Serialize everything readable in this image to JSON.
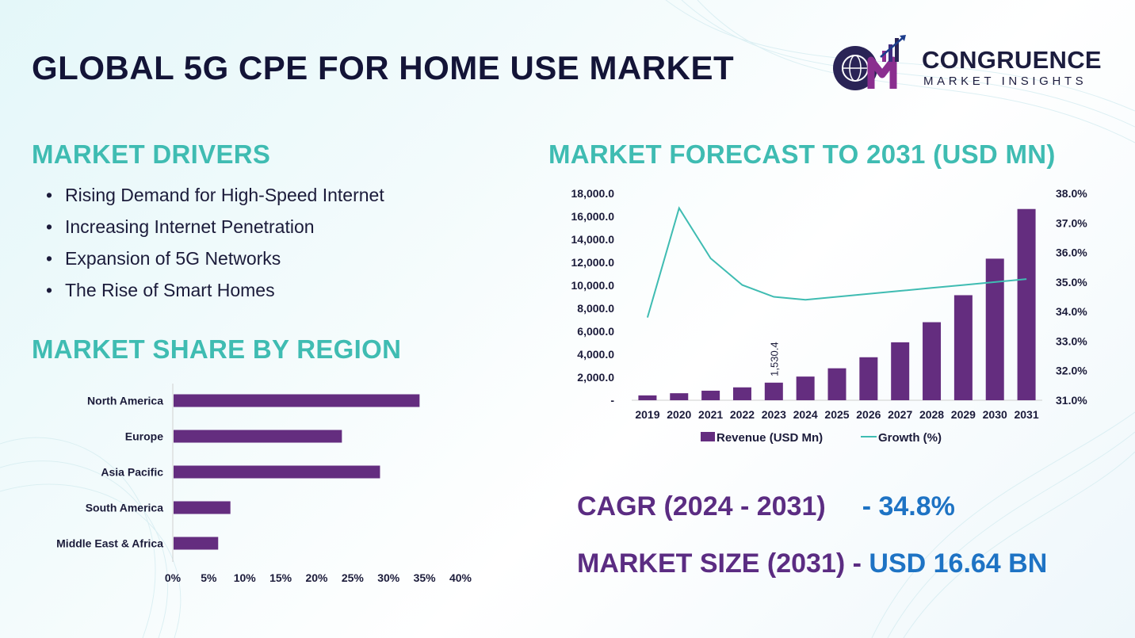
{
  "title": "GLOBAL 5G CPE FOR HOME USE MARKET",
  "logo": {
    "name": "CONGRUENCE",
    "sub": "MARKET INSIGHTS"
  },
  "drivers": {
    "heading": "MARKET DRIVERS",
    "items": [
      "Rising Demand for High-Speed Internet",
      "Increasing Internet Penetration",
      "Expansion of 5G Networks",
      "The Rise of Smart Homes"
    ]
  },
  "region_heading": "MARKET SHARE BY REGION",
  "forecast_heading": "MARKET FORECAST TO 2031 (USD MN)",
  "kpis": {
    "cagr_label": "CAGR (2024 - 2031)",
    "cagr_value": "- 34.8%",
    "size_label": "MARKET SIZE (2031) -",
    "size_value": "USD 16.64 BN"
  },
  "colors": {
    "bar": "#642d7f",
    "line": "#3fbcb2",
    "heading": "#3fbcb2",
    "kpi_label": "#5b2c82",
    "kpi_value": "#1e73c4"
  },
  "chart_data": [
    {
      "type": "bar",
      "orientation": "horizontal",
      "categories": [
        "North America",
        "Europe",
        "Asia Pacific",
        "South America",
        "Middle East & Africa"
      ],
      "values": [
        34.2,
        23.4,
        28.7,
        7.9,
        6.2
      ],
      "xlim": [
        0,
        40
      ],
      "xticks": [
        "0%",
        "5%",
        "10%",
        "15%",
        "20%",
        "25%",
        "30%",
        "35%",
        "40%"
      ]
    },
    {
      "type": "bar+line",
      "categories": [
        "2019",
        "2020",
        "2021",
        "2022",
        "2023",
        "2024",
        "2025",
        "2026",
        "2027",
        "2028",
        "2029",
        "2030",
        "2031"
      ],
      "series": [
        {
          "name": "Revenue (USD Mn)",
          "type": "bar",
          "axis": "left",
          "values": [
            420,
            610,
            830,
            1120,
            1530.4,
            2060,
            2780,
            3740,
            5040,
            6790,
            9140,
            12320,
            16640
          ]
        },
        {
          "name": "Growth (%)",
          "type": "line",
          "axis": "right",
          "values": [
            33.8,
            37.5,
            35.8,
            34.9,
            34.5,
            34.4,
            34.5,
            34.6,
            34.7,
            34.8,
            34.9,
            35.0,
            35.1
          ]
        }
      ],
      "data_labels": [
        {
          "category": "2023",
          "text": "1,530.4"
        }
      ],
      "y_left": {
        "lim": [
          0,
          18000
        ],
        "ticks": [
          "-",
          "2,000.0",
          "4,000.0",
          "6,000.0",
          "8,000.0",
          "10,000.0",
          "12,000.0",
          "14,000.0",
          "16,000.0",
          "18,000.0"
        ]
      },
      "y_right": {
        "lim": [
          31,
          38
        ],
        "ticks": [
          "31.0%",
          "32.0%",
          "33.0%",
          "34.0%",
          "35.0%",
          "36.0%",
          "37.0%",
          "38.0%"
        ]
      },
      "legend": "bottom"
    }
  ]
}
